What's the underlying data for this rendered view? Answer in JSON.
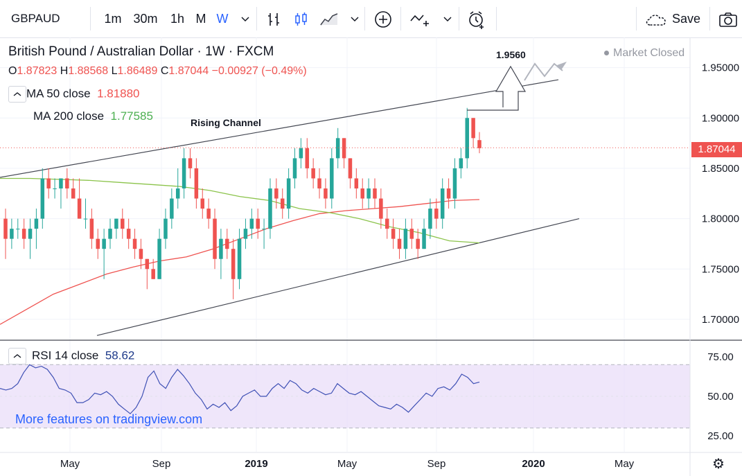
{
  "toolbar": {
    "symbol": "GBPAUD",
    "intervals": [
      "1m",
      "30m",
      "1h",
      "M",
      "W"
    ],
    "active_interval": "W",
    "save_label": "Save"
  },
  "legend": {
    "title": "British Pound / Australian Dollar · 1W · FXCM",
    "o_label": "O",
    "o": "1.87823",
    "h_label": "H",
    "h": "1.88568",
    "l_label": "L",
    "l": "1.86489",
    "c_label": "C",
    "c": "1.87044",
    "change": "−0.00927 (−0.49%)",
    "ma50_label": "MA 50 close",
    "ma50_value": "1.81880",
    "ma200_label": "MA 200 close",
    "ma200_value": "1.77585",
    "market_status": "Market Closed",
    "eye_icon": "eye-icon"
  },
  "rsi": {
    "label": "RSI 14 close",
    "value": "58.62"
  },
  "watermark": "More features on tradingview.com",
  "annotations": {
    "channel_label": "Rising Channel",
    "target_label": "1.9560"
  },
  "current_price_tag": "1.87044",
  "colors": {
    "up": "#26a69a",
    "down": "#ef5350",
    "ma50": "#ef5350",
    "ma200": "#8bc34a",
    "rsi": "#2962ff",
    "rsi_band": "#e8dcf8"
  },
  "chart_data": [
    {
      "type": "candlestick",
      "title": "British Pound / Australian Dollar · 1W · FXCM",
      "x_tick_labels": [
        "May",
        "Sep",
        "2019",
        "May",
        "Sep",
        "2020",
        "May"
      ],
      "y_tick_labels": [
        "1.95000",
        "1.90000",
        "1.85000",
        "1.80000",
        "1.75000",
        "1.70000"
      ],
      "ylim": [
        1.68,
        1.98
      ],
      "current_price": 1.87044,
      "candles": [
        [
          1.8,
          1.81,
          1.76,
          1.78
        ],
        [
          1.78,
          1.8,
          1.77,
          1.79
        ],
        [
          1.79,
          1.8,
          1.78,
          1.79
        ],
        [
          1.79,
          1.8,
          1.77,
          1.78
        ],
        [
          1.78,
          1.8,
          1.76,
          1.79
        ],
        [
          1.79,
          1.81,
          1.77,
          1.8
        ],
        [
          1.8,
          1.85,
          1.79,
          1.84
        ],
        [
          1.84,
          1.85,
          1.82,
          1.83
        ],
        [
          1.83,
          1.84,
          1.82,
          1.83
        ],
        [
          1.83,
          1.84,
          1.81,
          1.84
        ],
        [
          1.84,
          1.85,
          1.82,
          1.83
        ],
        [
          1.83,
          1.84,
          1.82,
          1.82
        ],
        [
          1.82,
          1.84,
          1.8,
          1.8
        ],
        [
          1.8,
          1.82,
          1.79,
          1.8
        ],
        [
          1.8,
          1.81,
          1.77,
          1.78
        ],
        [
          1.78,
          1.79,
          1.76,
          1.77
        ],
        [
          1.77,
          1.79,
          1.74,
          1.78
        ],
        [
          1.78,
          1.8,
          1.77,
          1.79
        ],
        [
          1.79,
          1.8,
          1.78,
          1.8
        ],
        [
          1.8,
          1.81,
          1.78,
          1.79
        ],
        [
          1.79,
          1.8,
          1.77,
          1.78
        ],
        [
          1.78,
          1.79,
          1.76,
          1.77
        ],
        [
          1.77,
          1.78,
          1.75,
          1.76
        ],
        [
          1.76,
          1.76,
          1.73,
          1.75
        ],
        [
          1.75,
          1.76,
          1.74,
          1.74
        ],
        [
          1.74,
          1.79,
          1.74,
          1.78
        ],
        [
          1.78,
          1.81,
          1.77,
          1.8
        ],
        [
          1.8,
          1.83,
          1.79,
          1.82
        ],
        [
          1.82,
          1.85,
          1.81,
          1.83
        ],
        [
          1.83,
          1.87,
          1.82,
          1.86
        ],
        [
          1.86,
          1.87,
          1.84,
          1.85
        ],
        [
          1.85,
          1.86,
          1.81,
          1.82
        ],
        [
          1.82,
          1.83,
          1.8,
          1.81
        ],
        [
          1.81,
          1.82,
          1.79,
          1.8
        ],
        [
          1.8,
          1.81,
          1.75,
          1.76
        ],
        [
          1.76,
          1.79,
          1.74,
          1.78
        ],
        [
          1.78,
          1.79,
          1.76,
          1.77
        ],
        [
          1.77,
          1.78,
          1.72,
          1.74
        ],
        [
          1.74,
          1.79,
          1.73,
          1.78
        ],
        [
          1.78,
          1.8,
          1.77,
          1.79
        ],
        [
          1.79,
          1.81,
          1.78,
          1.8
        ],
        [
          1.8,
          1.81,
          1.78,
          1.79
        ],
        [
          1.79,
          1.8,
          1.77,
          1.79
        ],
        [
          1.79,
          1.84,
          1.78,
          1.83
        ],
        [
          1.83,
          1.84,
          1.81,
          1.82
        ],
        [
          1.82,
          1.83,
          1.8,
          1.81
        ],
        [
          1.81,
          1.85,
          1.8,
          1.84
        ],
        [
          1.84,
          1.87,
          1.83,
          1.86
        ],
        [
          1.86,
          1.88,
          1.85,
          1.87
        ],
        [
          1.87,
          1.88,
          1.84,
          1.85
        ],
        [
          1.85,
          1.86,
          1.83,
          1.84
        ],
        [
          1.84,
          1.85,
          1.82,
          1.83
        ],
        [
          1.83,
          1.84,
          1.81,
          1.82
        ],
        [
          1.82,
          1.87,
          1.81,
          1.86
        ],
        [
          1.86,
          1.89,
          1.85,
          1.88
        ],
        [
          1.88,
          1.88,
          1.85,
          1.86
        ],
        [
          1.86,
          1.86,
          1.83,
          1.84
        ],
        [
          1.84,
          1.85,
          1.82,
          1.83
        ],
        [
          1.83,
          1.84,
          1.81,
          1.82
        ],
        [
          1.82,
          1.84,
          1.81,
          1.83
        ],
        [
          1.83,
          1.84,
          1.81,
          1.82
        ],
        [
          1.82,
          1.83,
          1.79,
          1.8
        ],
        [
          1.8,
          1.81,
          1.78,
          1.79
        ],
        [
          1.79,
          1.8,
          1.77,
          1.78
        ],
        [
          1.78,
          1.79,
          1.76,
          1.77
        ],
        [
          1.77,
          1.8,
          1.76,
          1.79
        ],
        [
          1.79,
          1.8,
          1.77,
          1.78
        ],
        [
          1.78,
          1.79,
          1.76,
          1.77
        ],
        [
          1.77,
          1.8,
          1.77,
          1.79
        ],
        [
          1.79,
          1.82,
          1.78,
          1.81
        ],
        [
          1.81,
          1.82,
          1.79,
          1.8
        ],
        [
          1.8,
          1.84,
          1.79,
          1.83
        ],
        [
          1.83,
          1.84,
          1.81,
          1.82
        ],
        [
          1.82,
          1.86,
          1.81,
          1.85
        ],
        [
          1.85,
          1.87,
          1.84,
          1.86
        ],
        [
          1.86,
          1.91,
          1.85,
          1.9
        ],
        [
          1.9,
          1.9,
          1.87,
          1.88
        ],
        [
          1.878,
          1.886,
          1.865,
          1.87
        ]
      ],
      "ma50": [
        1.695,
        1.71,
        1.725,
        1.735,
        1.745,
        1.752,
        1.758,
        1.762,
        1.77,
        1.78,
        1.79,
        1.798,
        1.805,
        1.808,
        1.81,
        1.812,
        1.815,
        1.818,
        1.819
      ],
      "ma200": [
        1.84,
        1.84,
        1.839,
        1.838,
        1.836,
        1.834,
        1.832,
        1.828,
        1.822,
        1.818,
        1.81,
        1.806,
        1.8,
        1.792,
        1.786,
        1.778,
        1.776
      ],
      "channel_upper": [
        [
          0,
          1.841
        ],
        [
          1,
          1.938
        ]
      ],
      "channel_lower": [
        [
          0,
          1.68
        ],
        [
          1,
          1.8
        ]
      ]
    },
    {
      "type": "line",
      "title": "RSI 14 close",
      "y_tick_labels": [
        "75.00",
        "50.00",
        "25.00"
      ],
      "ylim": [
        15,
        85
      ],
      "band": [
        30,
        70
      ],
      "values": [
        55,
        54,
        55,
        58,
        65,
        70,
        68,
        69,
        67,
        62,
        55,
        54,
        52,
        46,
        46,
        48,
        52,
        51,
        53,
        50,
        45,
        42,
        39,
        43,
        50,
        62,
        66,
        58,
        55,
        62,
        67,
        63,
        58,
        52,
        48,
        42,
        45,
        43,
        46,
        41,
        44,
        50,
        52,
        54,
        50,
        50,
        55,
        58,
        55,
        60,
        58,
        54,
        52,
        55,
        53,
        51,
        52,
        58,
        55,
        52,
        51,
        53,
        50,
        47,
        44,
        43,
        42,
        45,
        43,
        40,
        44,
        48,
        52,
        50,
        55,
        56,
        54,
        58,
        64,
        62,
        58,
        59
      ]
    }
  ]
}
